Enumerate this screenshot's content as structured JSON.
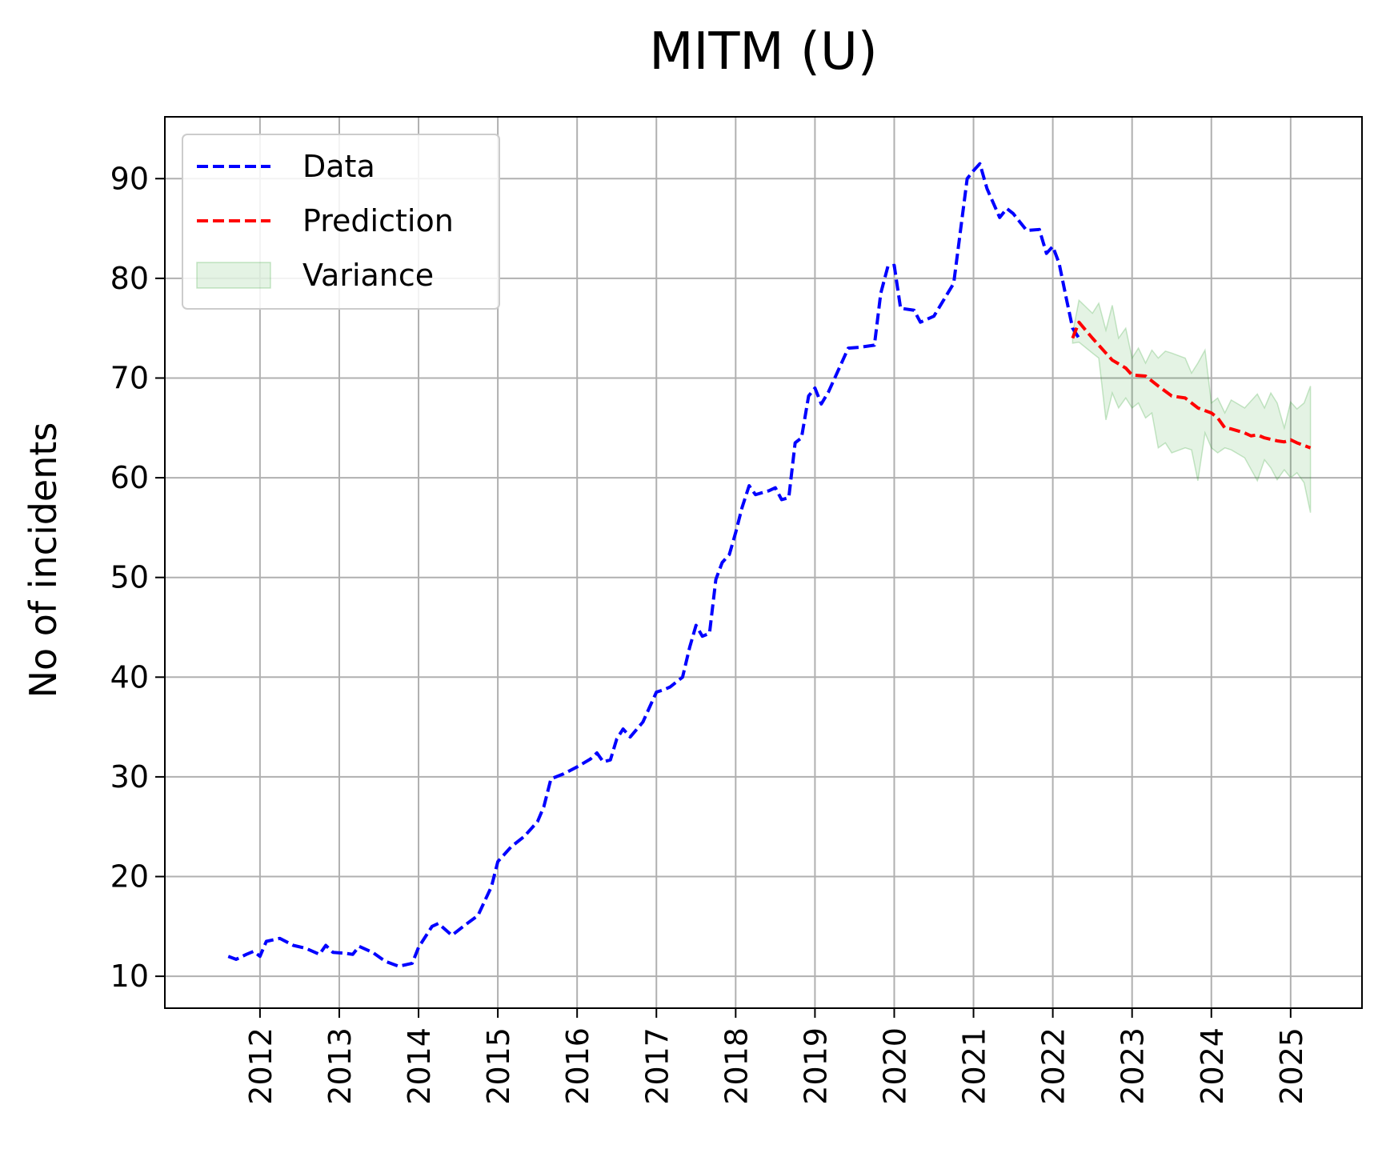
{
  "chart_data": {
    "type": "line",
    "title": "MITM (U)",
    "xlabel": "",
    "ylabel": "No of incidents",
    "xlim": [
      2010.8,
      2025.9
    ],
    "ylim": [
      6.8,
      96.2
    ],
    "x_ticks": [
      2012,
      2013,
      2014,
      2015,
      2016,
      2017,
      2018,
      2019,
      2020,
      2021,
      2022,
      2023,
      2024,
      2025
    ],
    "y_ticks": [
      10,
      20,
      30,
      40,
      50,
      60,
      70,
      80,
      90
    ],
    "grid": true,
    "legend_position": "upper left",
    "colors": {
      "data": "#0000ff",
      "prediction": "#ff0000",
      "variance": "#2ca02c"
    },
    "legend": [
      {
        "label": "Data",
        "style": "dashed-line",
        "color": "#0000ff"
      },
      {
        "label": "Prediction",
        "style": "dashed-line",
        "color": "#ff0000"
      },
      {
        "label": "Variance",
        "style": "filled-band",
        "color": "#2ca02c"
      }
    ],
    "series": [
      {
        "name": "Data",
        "color": "#0000ff",
        "points": [
          [
            2011.6,
            12.0
          ],
          [
            2011.7,
            11.7
          ],
          [
            2011.83,
            12.2
          ],
          [
            2011.92,
            12.5
          ],
          [
            2012.0,
            12.0
          ],
          [
            2012.08,
            13.5
          ],
          [
            2012.25,
            13.8
          ],
          [
            2012.42,
            13.1
          ],
          [
            2012.58,
            12.8
          ],
          [
            2012.75,
            12.2
          ],
          [
            2012.83,
            13.1
          ],
          [
            2012.92,
            12.4
          ],
          [
            2013.08,
            12.3
          ],
          [
            2013.17,
            12.2
          ],
          [
            2013.25,
            13.0
          ],
          [
            2013.42,
            12.4
          ],
          [
            2013.58,
            11.5
          ],
          [
            2013.75,
            11.0
          ],
          [
            2013.92,
            11.3
          ],
          [
            2014.0,
            12.9
          ],
          [
            2014.17,
            15.0
          ],
          [
            2014.25,
            15.3
          ],
          [
            2014.42,
            14.1
          ],
          [
            2014.58,
            15.1
          ],
          [
            2014.75,
            16.1
          ],
          [
            2014.92,
            19.0
          ],
          [
            2015.0,
            21.5
          ],
          [
            2015.17,
            23.0
          ],
          [
            2015.33,
            24.0
          ],
          [
            2015.5,
            25.5
          ],
          [
            2015.58,
            27.0
          ],
          [
            2015.67,
            29.8
          ],
          [
            2015.83,
            30.3
          ],
          [
            2016.0,
            31.0
          ],
          [
            2016.17,
            31.8
          ],
          [
            2016.25,
            32.4
          ],
          [
            2016.33,
            31.5
          ],
          [
            2016.42,
            31.7
          ],
          [
            2016.5,
            33.8
          ],
          [
            2016.58,
            34.8
          ],
          [
            2016.67,
            34.0
          ],
          [
            2016.83,
            35.5
          ],
          [
            2017.0,
            38.5
          ],
          [
            2017.08,
            38.7
          ],
          [
            2017.17,
            39.0
          ],
          [
            2017.33,
            40.0
          ],
          [
            2017.42,
            43.0
          ],
          [
            2017.5,
            45.2
          ],
          [
            2017.58,
            44.1
          ],
          [
            2017.67,
            44.4
          ],
          [
            2017.75,
            49.8
          ],
          [
            2017.83,
            51.5
          ],
          [
            2017.92,
            52.3
          ],
          [
            2018.0,
            54.5
          ],
          [
            2018.08,
            57.0
          ],
          [
            2018.17,
            59.2
          ],
          [
            2018.25,
            58.3
          ],
          [
            2018.42,
            58.7
          ],
          [
            2018.5,
            59.0
          ],
          [
            2018.58,
            57.8
          ],
          [
            2018.67,
            58.0
          ],
          [
            2018.75,
            63.5
          ],
          [
            2018.83,
            64.0
          ],
          [
            2018.92,
            68.2
          ],
          [
            2019.0,
            69.0
          ],
          [
            2019.08,
            67.4
          ],
          [
            2019.17,
            68.6
          ],
          [
            2019.25,
            70.0
          ],
          [
            2019.42,
            73.0
          ],
          [
            2019.58,
            73.1
          ],
          [
            2019.75,
            73.3
          ],
          [
            2019.83,
            78.5
          ],
          [
            2019.92,
            81.2
          ],
          [
            2020.0,
            81.3
          ],
          [
            2020.08,
            77.0
          ],
          [
            2020.25,
            76.8
          ],
          [
            2020.33,
            75.6
          ],
          [
            2020.5,
            76.2
          ],
          [
            2020.75,
            79.5
          ],
          [
            2020.92,
            90.0
          ],
          [
            2021.0,
            90.8
          ],
          [
            2021.08,
            91.5
          ],
          [
            2021.17,
            89.0
          ],
          [
            2021.33,
            86.1
          ],
          [
            2021.42,
            87.0
          ],
          [
            2021.5,
            86.5
          ],
          [
            2021.67,
            84.8
          ],
          [
            2021.83,
            84.9
          ],
          [
            2021.92,
            82.5
          ],
          [
            2022.0,
            83.2
          ],
          [
            2022.08,
            81.5
          ],
          [
            2022.17,
            78.0
          ],
          [
            2022.25,
            75.0
          ],
          [
            2022.33,
            74.0
          ]
        ]
      },
      {
        "name": "Prediction",
        "color": "#ff0000",
        "points": [
          [
            2022.25,
            74.0
          ],
          [
            2022.33,
            75.6
          ],
          [
            2022.5,
            74.0
          ],
          [
            2022.67,
            72.5
          ],
          [
            2022.75,
            71.8
          ],
          [
            2022.92,
            71.0
          ],
          [
            2023.0,
            70.3
          ],
          [
            2023.17,
            70.2
          ],
          [
            2023.33,
            69.2
          ],
          [
            2023.5,
            68.2
          ],
          [
            2023.67,
            68.0
          ],
          [
            2023.75,
            67.5
          ],
          [
            2023.83,
            67.0
          ],
          [
            2024.0,
            66.5
          ],
          [
            2024.08,
            66.0
          ],
          [
            2024.17,
            65.0
          ],
          [
            2024.25,
            64.9
          ],
          [
            2024.42,
            64.5
          ],
          [
            2024.5,
            64.2
          ],
          [
            2024.58,
            64.3
          ],
          [
            2024.67,
            64.0
          ],
          [
            2024.83,
            63.7
          ],
          [
            2024.92,
            63.6
          ],
          [
            2025.0,
            63.8
          ],
          [
            2025.08,
            63.5
          ],
          [
            2025.25,
            63.0
          ]
        ]
      }
    ],
    "variance": {
      "name": "Variance",
      "color": "#2ca02c",
      "upper": [
        [
          2022.25,
          74.5
        ],
        [
          2022.33,
          77.8
        ],
        [
          2022.5,
          76.5
        ],
        [
          2022.58,
          77.5
        ],
        [
          2022.67,
          74.8
        ],
        [
          2022.75,
          77.3
        ],
        [
          2022.83,
          74.0
        ],
        [
          2022.92,
          75.0
        ],
        [
          2023.0,
          72.0
        ],
        [
          2023.08,
          73.0
        ],
        [
          2023.17,
          71.5
        ],
        [
          2023.25,
          72.8
        ],
        [
          2023.33,
          72.0
        ],
        [
          2023.42,
          72.7
        ],
        [
          2023.5,
          72.5
        ],
        [
          2023.67,
          72.0
        ],
        [
          2023.75,
          70.5
        ],
        [
          2023.83,
          71.5
        ],
        [
          2023.92,
          72.8
        ],
        [
          2024.0,
          67.5
        ],
        [
          2024.08,
          68.0
        ],
        [
          2024.17,
          66.5
        ],
        [
          2024.25,
          67.8
        ],
        [
          2024.42,
          67.0
        ],
        [
          2024.58,
          68.4
        ],
        [
          2024.67,
          67.0
        ],
        [
          2024.75,
          68.5
        ],
        [
          2024.83,
          67.5
        ],
        [
          2024.92,
          65.0
        ],
        [
          2025.0,
          67.6
        ],
        [
          2025.08,
          66.9
        ],
        [
          2025.17,
          67.5
        ],
        [
          2025.25,
          69.2
        ]
      ],
      "lower": [
        [
          2022.25,
          73.5
        ],
        [
          2022.33,
          73.6
        ],
        [
          2022.5,
          72.5
        ],
        [
          2022.58,
          72.0
        ],
        [
          2022.67,
          65.8
        ],
        [
          2022.75,
          68.5
        ],
        [
          2022.83,
          67.0
        ],
        [
          2022.92,
          68.0
        ],
        [
          2023.0,
          67.0
        ],
        [
          2023.08,
          67.5
        ],
        [
          2023.17,
          66.0
        ],
        [
          2023.25,
          66.5
        ],
        [
          2023.33,
          63.0
        ],
        [
          2023.42,
          63.5
        ],
        [
          2023.5,
          62.5
        ],
        [
          2023.67,
          63.0
        ],
        [
          2023.75,
          62.8
        ],
        [
          2023.83,
          59.7
        ],
        [
          2023.92,
          64.5
        ],
        [
          2024.0,
          63.0
        ],
        [
          2024.08,
          62.5
        ],
        [
          2024.17,
          63.0
        ],
        [
          2024.25,
          62.8
        ],
        [
          2024.42,
          62.0
        ],
        [
          2024.58,
          59.7
        ],
        [
          2024.67,
          61.8
        ],
        [
          2024.75,
          61.0
        ],
        [
          2024.83,
          59.8
        ],
        [
          2024.92,
          60.8
        ],
        [
          2025.0,
          60.0
        ],
        [
          2025.08,
          60.5
        ],
        [
          2025.17,
          59.5
        ],
        [
          2025.25,
          56.5
        ]
      ]
    }
  }
}
